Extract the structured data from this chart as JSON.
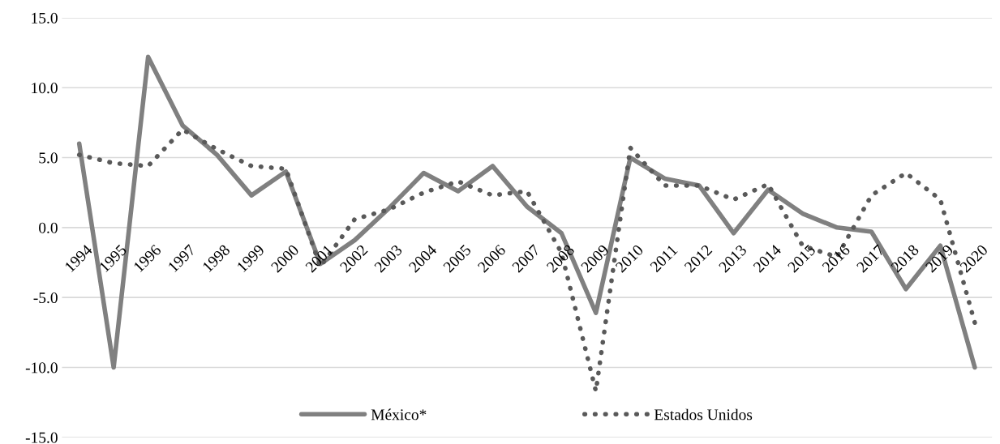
{
  "chart_data": {
    "type": "line",
    "categories": [
      "1994",
      "1995",
      "1996",
      "1997",
      "1998",
      "1999",
      "2000",
      "2001",
      "2002",
      "2003",
      "2004",
      "2005",
      "2006",
      "2007",
      "2008",
      "2009",
      "2010",
      "2011",
      "2012",
      "2013",
      "2014",
      "2015",
      "2016",
      "2017",
      "2018",
      "2019",
      "2020"
    ],
    "series": [
      {
        "name": "México*",
        "color": "#808080",
        "line_style": "solid",
        "values": [
          6.0,
          -10.0,
          12.2,
          7.3,
          5.2,
          2.3,
          4.0,
          -2.6,
          -0.9,
          1.4,
          3.9,
          2.6,
          4.4,
          1.5,
          -0.4,
          -6.1,
          5.0,
          3.5,
          3.0,
          -0.4,
          2.7,
          1.0,
          0.0,
          -0.3,
          -4.4,
          -1.3,
          -10.0
        ]
      },
      {
        "name": "Estados Unidos",
        "color": "#595959",
        "line_style": "dotted",
        "values": [
          5.2,
          4.6,
          4.4,
          7.0,
          5.6,
          4.4,
          4.2,
          -2.8,
          0.6,
          1.3,
          2.5,
          3.3,
          2.3,
          2.6,
          -1.8,
          -11.7,
          5.7,
          3.0,
          3.0,
          2.0,
          3.1,
          -1.3,
          -2.1,
          2.3,
          3.9,
          2.0,
          -6.8
        ]
      }
    ],
    "ylim": [
      -15,
      15
    ],
    "yticks": [
      {
        "value": -15,
        "label": "-15.0"
      },
      {
        "value": -10,
        "label": "-10.0"
      },
      {
        "value": -5,
        "label": "-5.0"
      },
      {
        "value": 0,
        "label": "0.0"
      },
      {
        "value": 5,
        "label": "5.0"
      },
      {
        "value": 10,
        "label": "10.0"
      },
      {
        "value": 15,
        "label": "15.0"
      }
    ],
    "grid": "y",
    "legend": "bottom"
  }
}
